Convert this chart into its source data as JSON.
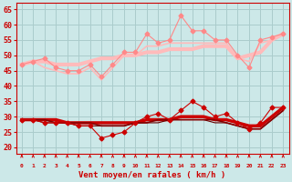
{
  "x": [
    0,
    1,
    2,
    3,
    4,
    5,
    6,
    7,
    8,
    9,
    10,
    11,
    12,
    13,
    14,
    15,
    16,
    17,
    18,
    19,
    20,
    21,
    22,
    23
  ],
  "background_color": "#cce8e8",
  "grid_color": "#aacccc",
  "xlabel": "Vent moyen/en rafales ( km/h )",
  "xlabel_color": "#cc0000",
  "tick_color": "#cc0000",
  "ylim": [
    18,
    67
  ],
  "yticks": [
    20,
    25,
    30,
    35,
    40,
    45,
    50,
    55,
    60,
    65
  ],
  "series": [
    {
      "values": [
        47,
        48,
        49,
        46,
        45,
        45,
        47,
        43,
        47,
        51,
        51,
        57,
        54,
        55,
        63,
        58,
        58,
        55,
        55,
        50,
        46,
        55,
        56,
        57
      ],
      "color": "#ff8888",
      "marker": "D",
      "linewidth": 0.8,
      "markersize": 2.5,
      "zorder": 5
    },
    {
      "values": [
        47,
        48,
        48,
        47,
        47,
        47,
        48,
        49,
        49,
        50,
        50,
        51,
        51,
        52,
        52,
        52,
        53,
        53,
        53,
        49,
        50,
        51,
        55,
        57
      ],
      "color": "#ffbbbb",
      "marker": null,
      "linewidth": 3.0,
      "markersize": 0,
      "zorder": 2
    },
    {
      "values": [
        47,
        48,
        46,
        45,
        44,
        44,
        46,
        42,
        46,
        50,
        50,
        53,
        53,
        54,
        54,
        54,
        54,
        54,
        54,
        49,
        48,
        54,
        55,
        57
      ],
      "color": "#ffbbbb",
      "marker": null,
      "linewidth": 1.2,
      "markersize": 0,
      "zorder": 3
    },
    {
      "values": [
        29,
        29,
        28,
        28,
        28,
        27,
        27,
        23,
        24,
        25,
        28,
        30,
        31,
        29,
        32,
        35,
        33,
        30,
        31,
        28,
        26,
        28,
        33,
        33
      ],
      "color": "#cc0000",
      "marker": "D",
      "linewidth": 0.8,
      "markersize": 2.5,
      "zorder": 5
    },
    {
      "values": [
        29,
        29,
        29,
        29,
        28,
        28,
        28,
        28,
        28,
        28,
        28,
        29,
        29,
        29,
        30,
        30,
        30,
        29,
        29,
        28,
        27,
        27,
        30,
        33
      ],
      "color": "#cc0000",
      "marker": null,
      "linewidth": 2.5,
      "markersize": 0,
      "zorder": 2
    },
    {
      "values": [
        29,
        29,
        29,
        28,
        28,
        28,
        28,
        27,
        27,
        27,
        28,
        28,
        29,
        29,
        29,
        29,
        29,
        29,
        28,
        27,
        26,
        26,
        29,
        32
      ],
      "color": "#880000",
      "marker": null,
      "linewidth": 1.2,
      "markersize": 0,
      "zorder": 3
    },
    {
      "values": [
        29,
        29,
        28,
        28,
        28,
        27,
        27,
        27,
        27,
        27,
        28,
        28,
        28,
        29,
        29,
        29,
        29,
        28,
        28,
        27,
        26,
        26,
        29,
        32
      ],
      "color": "#660000",
      "marker": null,
      "linewidth": 0.8,
      "markersize": 0,
      "zorder": 2
    }
  ],
  "arrow_color": "#cc0000",
  "ytick_fontsize": 6,
  "xtick_fontsize": 4.5
}
